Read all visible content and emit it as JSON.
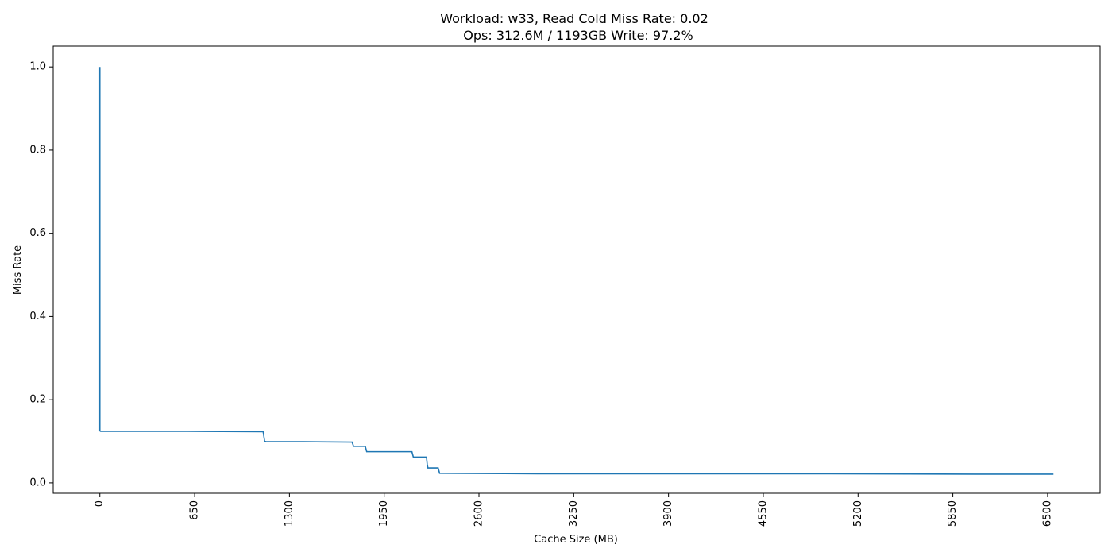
{
  "chart_data": {
    "type": "line",
    "title_line1": "Workload: w33, Read Cold Miss Rate: 0.02",
    "title_line2": "Ops: 312.6M / 1193GB Write: 97.2%",
    "xlabel": "Cache Size (MB)",
    "ylabel": "Miss Rate",
    "xlim": [
      -320,
      6860
    ],
    "ylim": [
      -0.025,
      1.05
    ],
    "xticks": [
      0,
      650,
      1300,
      1950,
      2600,
      3250,
      3900,
      4550,
      5200,
      5850,
      6500
    ],
    "xtick_labels": [
      "0",
      "650",
      "1300",
      "1950",
      "2600",
      "3250",
      "3900",
      "4550",
      "5200",
      "5850",
      "6500"
    ],
    "yticks": [
      0.0,
      0.2,
      0.4,
      0.6,
      0.8,
      1.0
    ],
    "ytick_labels": [
      "0.0",
      "0.2",
      "0.4",
      "0.6",
      "0.8",
      "1.0"
    ],
    "grid": false,
    "legend": "none",
    "series": [
      {
        "color": "#1f77b4",
        "x": [
          0,
          0,
          5,
          600,
          1120,
          1130,
          1140,
          1400,
          1730,
          1740,
          1820,
          1830,
          2140,
          2150,
          2240,
          2245,
          2250,
          2320,
          2330,
          3000,
          4000,
          5000,
          6000,
          6540
        ],
        "y": [
          1.0,
          0.125,
          0.124,
          0.124,
          0.123,
          0.1,
          0.099,
          0.099,
          0.098,
          0.088,
          0.088,
          0.075,
          0.075,
          0.062,
          0.062,
          0.045,
          0.036,
          0.036,
          0.023,
          0.022,
          0.022,
          0.022,
          0.021,
          0.021
        ]
      }
    ]
  }
}
